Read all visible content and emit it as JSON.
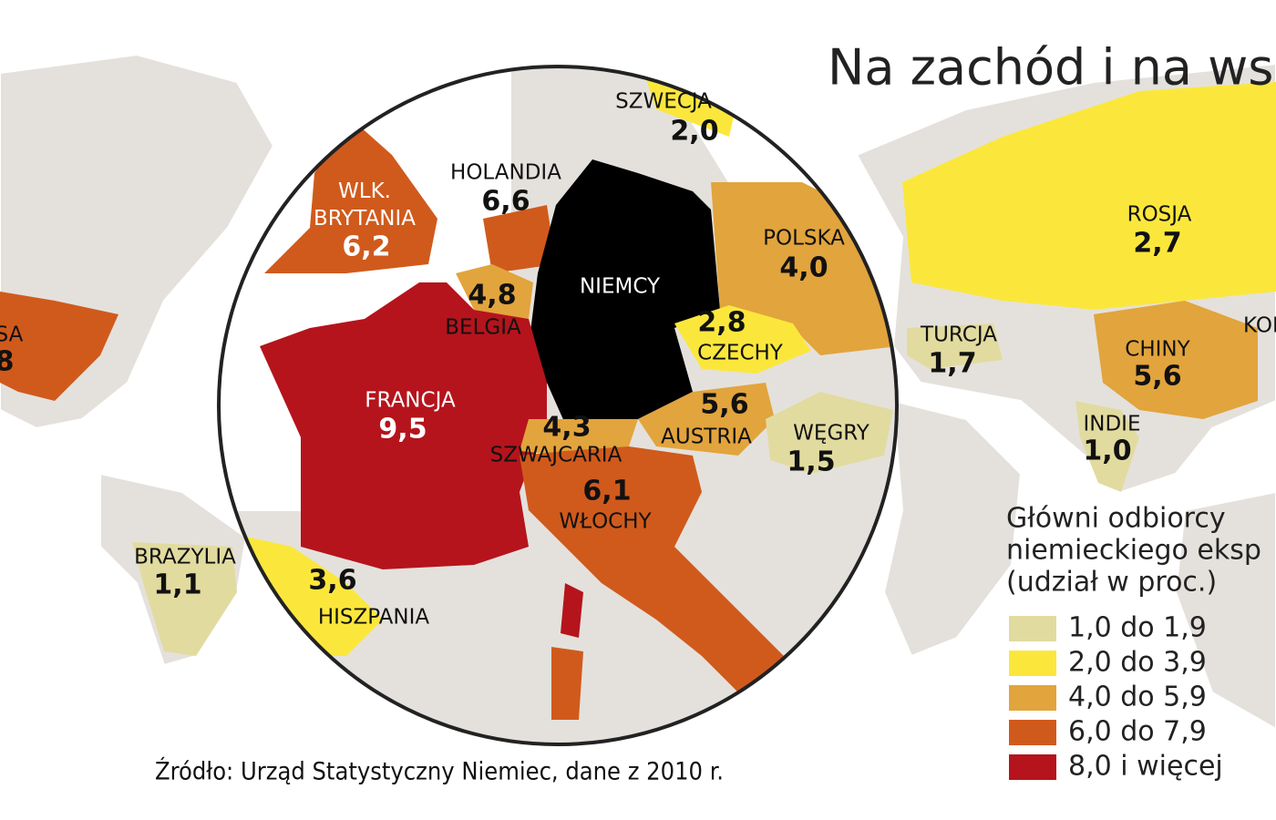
{
  "title": "Na zachód i na wsc",
  "countries": [
    {
      "name": "SZWECJA",
      "value": "2,0"
    },
    {
      "name": "HOLANDIA",
      "value": "6,6"
    },
    {
      "name": "WLK.\nBRYTANIA",
      "value": "6,2"
    },
    {
      "name": "NIEMCY"
    },
    {
      "name": "POLSKA",
      "value": "4,0"
    },
    {
      "name": "BELGIA",
      "value": "4,8"
    },
    {
      "name": "CZECHY",
      "value": "2,8"
    },
    {
      "name": "FRANCJA",
      "value": "9,5"
    },
    {
      "name": "AUSTRIA",
      "value": "5,6"
    },
    {
      "name": "WĘGRY",
      "value": "1,5"
    },
    {
      "name": "SZWAJCARIA",
      "value": "4,3"
    },
    {
      "name": "WŁOCHY",
      "value": "6,1"
    },
    {
      "name": "HISZPANIA",
      "value": "3,6"
    },
    {
      "name": "BRAZYLIA",
      "value": "1,1"
    },
    {
      "name": "SA",
      "value": "8"
    },
    {
      "name": "ROSJA",
      "value": "2,7"
    },
    {
      "name": "TURCJA",
      "value": "1,7"
    },
    {
      "name": "CHINY",
      "value": "5,6"
    },
    {
      "name": "INDIE",
      "value": "1,0"
    },
    {
      "name": "KOR"
    }
  ],
  "legend": {
    "title": [
      "Główni odbiorcy",
      "niemieckiego eksp",
      "(udział w proc.)"
    ],
    "items": [
      {
        "label": "1,0 do 1,9",
        "color": "#e2dba0"
      },
      {
        "label": "2,0 do 3,9",
        "color": "#fbe73c"
      },
      {
        "label": "4,0 do 5,9",
        "color": "#e2a43c"
      },
      {
        "label": "6,0 do 7,9",
        "color": "#d05a1c"
      },
      {
        "label": "8,0 i więcej",
        "color": "#b5141c"
      }
    ]
  },
  "source": "Źródło: Urząd Statystyczny Niemiec, dane z 2010 r."
}
